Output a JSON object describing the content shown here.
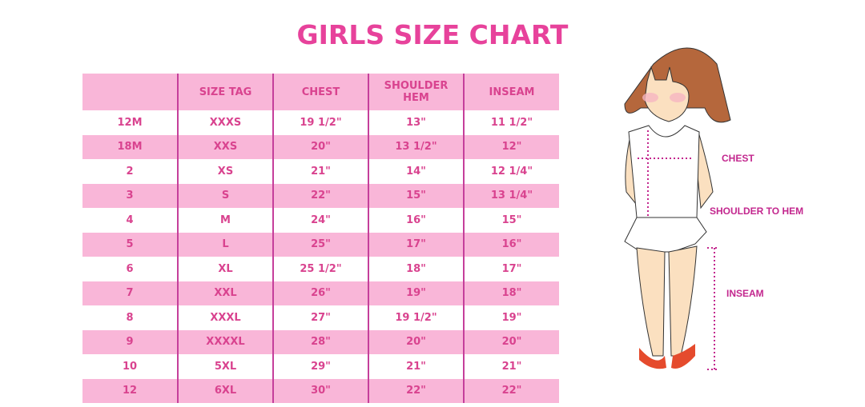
{
  "title": "GIRLS SIZE CHART",
  "chart_data": {
    "type": "table",
    "title": "GIRLS SIZE CHART",
    "columns": [
      "",
      "SIZE TAG",
      "CHEST",
      "SHOULDER HEM",
      "INSEAM"
    ],
    "rows": [
      [
        "12M",
        "XXXS",
        "19 1/2\"",
        "13\"",
        "11 1/2\""
      ],
      [
        "18M",
        "XXS",
        "20\"",
        "13 1/2\"",
        "12\""
      ],
      [
        "2",
        "XS",
        "21\"",
        "14\"",
        "12 1/4\""
      ],
      [
        "3",
        "S",
        "22\"",
        "15\"",
        "13 1/4\""
      ],
      [
        "4",
        "M",
        "24\"",
        "16\"",
        "15\""
      ],
      [
        "5",
        "L",
        "25\"",
        "17\"",
        "16\""
      ],
      [
        "6",
        "XL",
        "25 1/2\"",
        "18\"",
        "17\""
      ],
      [
        "7",
        "XXL",
        "26\"",
        "19\"",
        "18\""
      ],
      [
        "8",
        "XXXL",
        "27\"",
        "19 1/2\"",
        "19\""
      ],
      [
        "9",
        "XXXXL",
        "28\"",
        "20\"",
        "20\""
      ],
      [
        "10",
        "5XL",
        "29\"",
        "21\"",
        "21\""
      ],
      [
        "12",
        "6XL",
        "30\"",
        "22\"",
        "22\""
      ]
    ]
  },
  "figure": {
    "labels": {
      "chest": "CHEST",
      "shoulder": "SHOULDER TO HEM",
      "inseam": "INSEAM"
    }
  },
  "colors": {
    "title": "#e7429b",
    "text": "#d9438f",
    "stripe": "#f9b6d8",
    "divider": "#c53f9b",
    "measure": "#c3278e"
  }
}
